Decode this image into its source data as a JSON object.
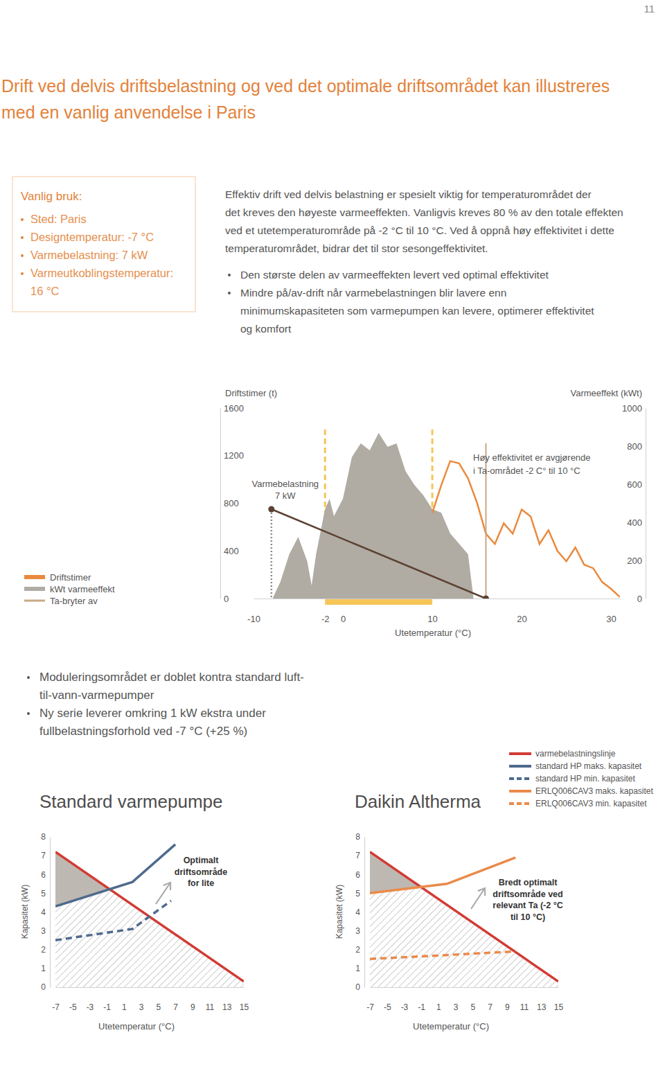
{
  "page": {
    "number": "11",
    "title": [
      "Drift ved delvis driftsbelastning og ved det optimale driftsområdet kan illustreres",
      "med en vanlig anvendelse i Paris"
    ],
    "box": {
      "title": "Vanlig bruk:",
      "items": [
        [
          "Sted: Paris"
        ],
        [
          "Designtemperatur: -7 °C"
        ],
        [
          "Varmebelastning: 7 kW"
        ],
        [
          "Varmeutkoblingstemperatur:",
          "16 °C"
        ]
      ]
    },
    "intro": {
      "lines": [
        "Effektiv drift ved delvis belastning er spesielt viktig for temperaturområdet der",
        "det kreves den høyeste varmeeffekten. Vanligvis kreves 80 % av den totale effekten",
        "ved et utetemperaturområde på -2 °C til 10 °C. Ved å oppnå høy effektivitet i dette",
        "temperaturområdet, bidrar det til stor sesongeffektivitet."
      ],
      "bullets": [
        [
          "Den største delen av varmeeffekten levert ved optimal effektivitet"
        ],
        [
          "Mindre på/av-drift når varmebelastningen blir lavere enn",
          "minimumskapasiteten som varmepumpen kan levere, optimerer effektivitet",
          "og komfort"
        ]
      ]
    },
    "notes": {
      "bullets": [
        [
          "Moduleringsområdet er doblet kontra standard luft-",
          "til-vann-varmepumper"
        ],
        [
          "Ny serie leverer omkring 1 kW ekstra under",
          "fullbelastningsforhold ved -7 °C (+25 %)"
        ]
      ]
    }
  },
  "chart_data": [
    {
      "type": "line",
      "xlabel": "Utetemperatur (°C)",
      "ylabel": "Driftstimer (t)",
      "y2label": "Varmeeffekt (kWt)",
      "xlim": [
        -10,
        31
      ],
      "xticks": [
        -10,
        -2,
        0,
        10,
        20,
        30
      ],
      "ylim": [
        0,
        1600
      ],
      "yticks": [
        0,
        400,
        800,
        1200,
        1600
      ],
      "y2lim": [
        0,
        1000
      ],
      "y2ticks": [
        0,
        200,
        400,
        600,
        800,
        1000
      ],
      "legend": "left",
      "series": [
        {
          "name": "Driftstimer",
          "type": "line",
          "color": "#ea8a3e",
          "x": [
            10,
            11,
            12,
            13,
            14,
            15,
            16,
            17,
            18,
            19,
            20,
            21,
            22,
            23,
            24,
            25,
            26,
            27,
            28,
            29,
            30,
            31
          ],
          "values": [
            719,
            951,
            1154,
            1136,
            1009,
            806,
            545,
            458,
            632,
            545,
            748,
            690,
            458,
            574,
            400,
            313,
            429,
            284,
            255,
            139,
            81,
            12
          ]
        },
        {
          "name": "kWt varmeeffekt",
          "type": "area",
          "color": "#b0aba3",
          "axis": "y2",
          "x": [
            -7.8,
            -7,
            -6,
            -5,
            -4,
            -3.5,
            -3,
            -2,
            -1.5,
            -1,
            0,
            1,
            2,
            3,
            4,
            5,
            6,
            7,
            8,
            9,
            10,
            11,
            12,
            13,
            14,
            14.6
          ],
          "values": [
            7,
            87,
            233,
            324,
            196,
            69,
            233,
            469,
            524,
            433,
            524,
            742,
            815,
            778,
            869,
            796,
            815,
            669,
            596,
            542,
            469,
            451,
            342,
            287,
            233,
            7
          ]
        },
        {
          "name": "Ta-bryter av",
          "type": "line",
          "color": "#c9a883",
          "axis": "y2",
          "x": [
            16,
            16
          ],
          "values": [
            815,
            0
          ]
        }
      ],
      "annotations": [
        {
          "text": [
            "Varmebelastning",
            "7 kW"
          ],
          "x": [
            -8,
            16
          ],
          "values": [
            469,
            0
          ],
          "axis": "y2",
          "color": "#5b4131"
        },
        {
          "text": [
            "Høy effektivitet er avgjørende",
            "i Ta-området -2 C° til 10 °C"
          ],
          "x": [
            -2,
            10
          ],
          "color": "#f6c558"
        }
      ]
    },
    {
      "type": "line",
      "title": "Standard varmepumpe",
      "xlabel": "Utetemperatur (°C)",
      "ylabel": "Kapasitet (kW)",
      "xlim": [
        -7,
        15
      ],
      "xticks": [
        -7,
        -5,
        -3,
        -1,
        1,
        3,
        5,
        7,
        9,
        11,
        13,
        15
      ],
      "ylim": [
        0,
        8
      ],
      "yticks": [
        0,
        1,
        2,
        3,
        4,
        5,
        6,
        7,
        8
      ],
      "legend": "top right",
      "series": [
        {
          "name": "varmebelastningslinje",
          "color": "#d23b34",
          "x": [
            -7,
            15
          ],
          "values": [
            7.2,
            0.3
          ]
        },
        {
          "name": "standard HP maks. kapasitet",
          "color": "#4f6b8d",
          "x": [
            -7,
            2,
            7
          ],
          "values": [
            4.3,
            5.6,
            7.6
          ]
        },
        {
          "name": "standard HP min. kapasitet",
          "color": "#4f6b8d",
          "line_style": "dashed",
          "x": [
            -7,
            2,
            6.5
          ],
          "values": [
            2.5,
            3.1,
            4.6
          ]
        }
      ],
      "annotations": [
        {
          "text": [
            "Optimalt",
            "driftsområde",
            "for lite"
          ]
        }
      ]
    },
    {
      "type": "line",
      "title": "Daikin Altherma",
      "xlabel": "Utetemperatur (°C)",
      "ylabel": "Kapasitet (kW)",
      "xlim": [
        -7,
        15
      ],
      "xticks": [
        -7,
        -5,
        -3,
        -1,
        1,
        3,
        5,
        7,
        9,
        11,
        13,
        15
      ],
      "ylim": [
        0,
        8
      ],
      "yticks": [
        0,
        1,
        2,
        3,
        4,
        5,
        6,
        7,
        8
      ],
      "legend": "top right",
      "series": [
        {
          "color": "#d23b34",
          "x": [
            -7,
            15
          ],
          "values": [
            7.2,
            0.3
          ]
        },
        {
          "name": "ERLQ006CAV3 maks. kapasitet",
          "color": "#ea8a4a",
          "x": [
            -7,
            2,
            10
          ],
          "values": [
            5.0,
            5.5,
            6.9
          ]
        },
        {
          "name": "ERLQ006CAV3 min. kapasitet",
          "color": "#ea8a4a",
          "line_style": "dashed",
          "x": [
            -7,
            10
          ],
          "values": [
            1.5,
            1.9
          ]
        }
      ],
      "annotations": [
        {
          "text": [
            "Bredt optimalt",
            "driftsområde ved",
            "relevant Ta (-2 °C",
            "til 10 °C)"
          ]
        }
      ]
    }
  ]
}
